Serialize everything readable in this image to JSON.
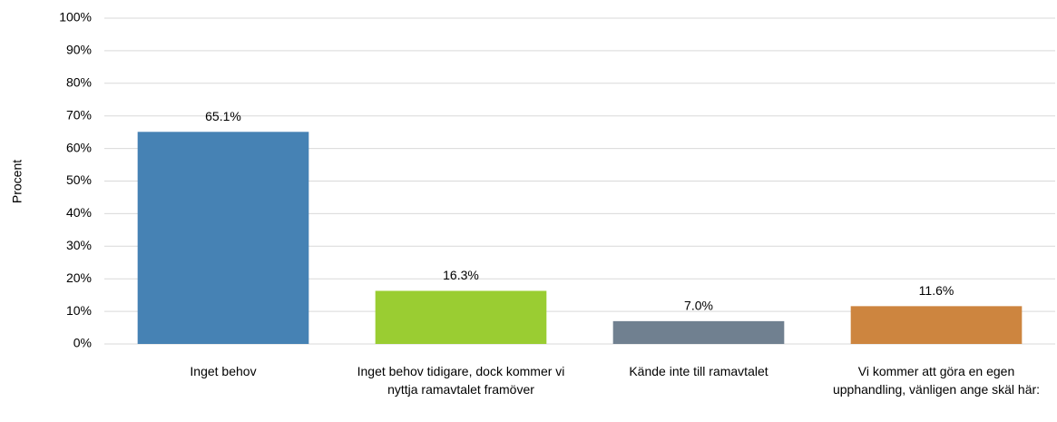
{
  "chart_data": {
    "type": "bar",
    "y_label": "Procent",
    "categories": [
      "Inget behov",
      "Inget behov tidigare, dock kommer vi nyttja ramavtalet framöver",
      "Kände inte till ramavtalet",
      "Vi kommer att göra en egen upphandling, vänligen ange skäl här:"
    ],
    "values": [
      65.1,
      16.3,
      7.0,
      11.6
    ],
    "value_labels": [
      "65.1%",
      "16.3%",
      "7.0%",
      "11.6%"
    ],
    "colors": [
      "#4682b4",
      "#9acd32",
      "#708090",
      "#cd853f"
    ],
    "ylim": [
      0,
      100
    ],
    "yticks": [
      {
        "value": 0,
        "label": "0%"
      },
      {
        "value": 10,
        "label": "10%"
      },
      {
        "value": 20,
        "label": "20%"
      },
      {
        "value": 30,
        "label": "30%"
      },
      {
        "value": 40,
        "label": "40%"
      },
      {
        "value": 50,
        "label": "50%"
      },
      {
        "value": 60,
        "label": "60%"
      },
      {
        "value": 70,
        "label": "70%"
      },
      {
        "value": 80,
        "label": "80%"
      },
      {
        "value": 90,
        "label": "90%"
      },
      {
        "value": 100,
        "label": "100%"
      }
    ],
    "grid": true
  }
}
